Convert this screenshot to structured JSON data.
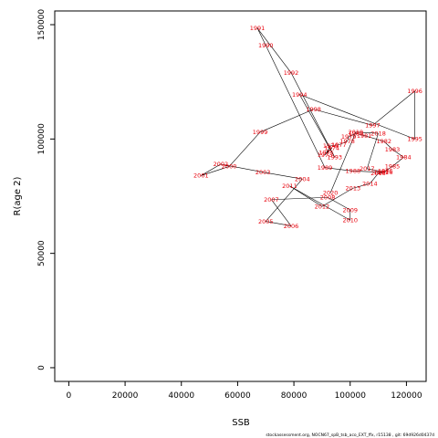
{
  "chart_data": {
    "type": "line",
    "title": "",
    "xlabel": "SSB",
    "ylabel": "R(age 2)",
    "xlim": [
      -5000,
      127000
    ],
    "ylim": [
      -6000,
      156000
    ],
    "xticks": [
      0,
      20000,
      40000,
      60000,
      80000,
      100000,
      120000
    ],
    "yticks": [
      0,
      50000,
      100000,
      150000
    ],
    "grid": false,
    "legend": "none",
    "line_color": "#000000",
    "label_color": "#e8000b",
    "points": [
      {
        "label": "1973",
        "x": 91000,
        "y": 93000
      },
      {
        "label": "1974",
        "x": 93500,
        "y": 96000
      },
      {
        "label": "1975",
        "x": 91500,
        "y": 94000
      },
      {
        "label": "1976",
        "x": 93000,
        "y": 97000
      },
      {
        "label": "1977",
        "x": 96000,
        "y": 97500
      },
      {
        "label": "1978",
        "x": 99000,
        "y": 99000
      },
      {
        "label": "1979",
        "x": 99500,
        "y": 101000
      },
      {
        "label": "1980",
        "x": 102000,
        "y": 102500
      },
      {
        "label": "1981",
        "x": 105000,
        "y": 101500
      },
      {
        "label": "1982",
        "x": 112000,
        "y": 99000
      },
      {
        "label": "1983",
        "x": 115000,
        "y": 95500
      },
      {
        "label": "1984",
        "x": 119000,
        "y": 92000
      },
      {
        "label": "1985",
        "x": 115000,
        "y": 88000
      },
      {
        "label": "1986",
        "x": 112500,
        "y": 86000
      },
      {
        "label": "1987",
        "x": 111000,
        "y": 85500
      },
      {
        "label": "1988",
        "x": 101000,
        "y": 86000
      },
      {
        "label": "1989",
        "x": 91000,
        "y": 87500
      },
      {
        "label": "1990",
        "x": 70000,
        "y": 141000
      },
      {
        "label": "1991",
        "x": 67000,
        "y": 148500
      },
      {
        "label": "1992",
        "x": 79000,
        "y": 129000
      },
      {
        "label": "1993",
        "x": 94500,
        "y": 92000
      },
      {
        "label": "1994",
        "x": 82000,
        "y": 119500
      },
      {
        "label": "1995",
        "x": 123000,
        "y": 100000
      },
      {
        "label": "1996",
        "x": 123000,
        "y": 121000
      },
      {
        "label": "1997",
        "x": 108000,
        "y": 106000
      },
      {
        "label": "1998",
        "x": 87000,
        "y": 113000
      },
      {
        "label": "1999",
        "x": 68000,
        "y": 103000
      },
      {
        "label": "2000",
        "x": 57000,
        "y": 88000
      },
      {
        "label": "2001",
        "x": 47000,
        "y": 84000
      },
      {
        "label": "2002",
        "x": 54000,
        "y": 89000
      },
      {
        "label": "2003",
        "x": 69000,
        "y": 85500
      },
      {
        "label": "2004",
        "x": 83000,
        "y": 82500
      },
      {
        "label": "2005",
        "x": 70000,
        "y": 64000
      },
      {
        "label": "2006",
        "x": 79000,
        "y": 62000
      },
      {
        "label": "2007",
        "x": 72000,
        "y": 73500
      },
      {
        "label": "2008",
        "x": 92000,
        "y": 74500
      },
      {
        "label": "2009",
        "x": 100000,
        "y": 69000
      },
      {
        "label": "2010",
        "x": 100000,
        "y": 64500
      },
      {
        "label": "2011",
        "x": 78500,
        "y": 79500
      },
      {
        "label": "2012",
        "x": 90000,
        "y": 70500
      },
      {
        "label": "2013",
        "x": 101000,
        "y": 78500
      },
      {
        "label": "2014",
        "x": 107000,
        "y": 80500
      },
      {
        "label": "2015",
        "x": 110000,
        "y": 85000
      },
      {
        "label": "2016",
        "x": 112500,
        "y": 85500
      },
      {
        "label": "2017",
        "x": 106000,
        "y": 87000
      },
      {
        "label": "2018",
        "x": 110000,
        "y": 102500
      },
      {
        "label": "2019",
        "x": 102000,
        "y": 103000
      },
      {
        "label": "2020",
        "x": 93000,
        "y": 76500
      }
    ]
  },
  "footer": {
    "text": "stockassessment.org, NOCN67_spB_tsb_aco_EXT_ffx, r15138 , git: 69d926d0437d"
  }
}
